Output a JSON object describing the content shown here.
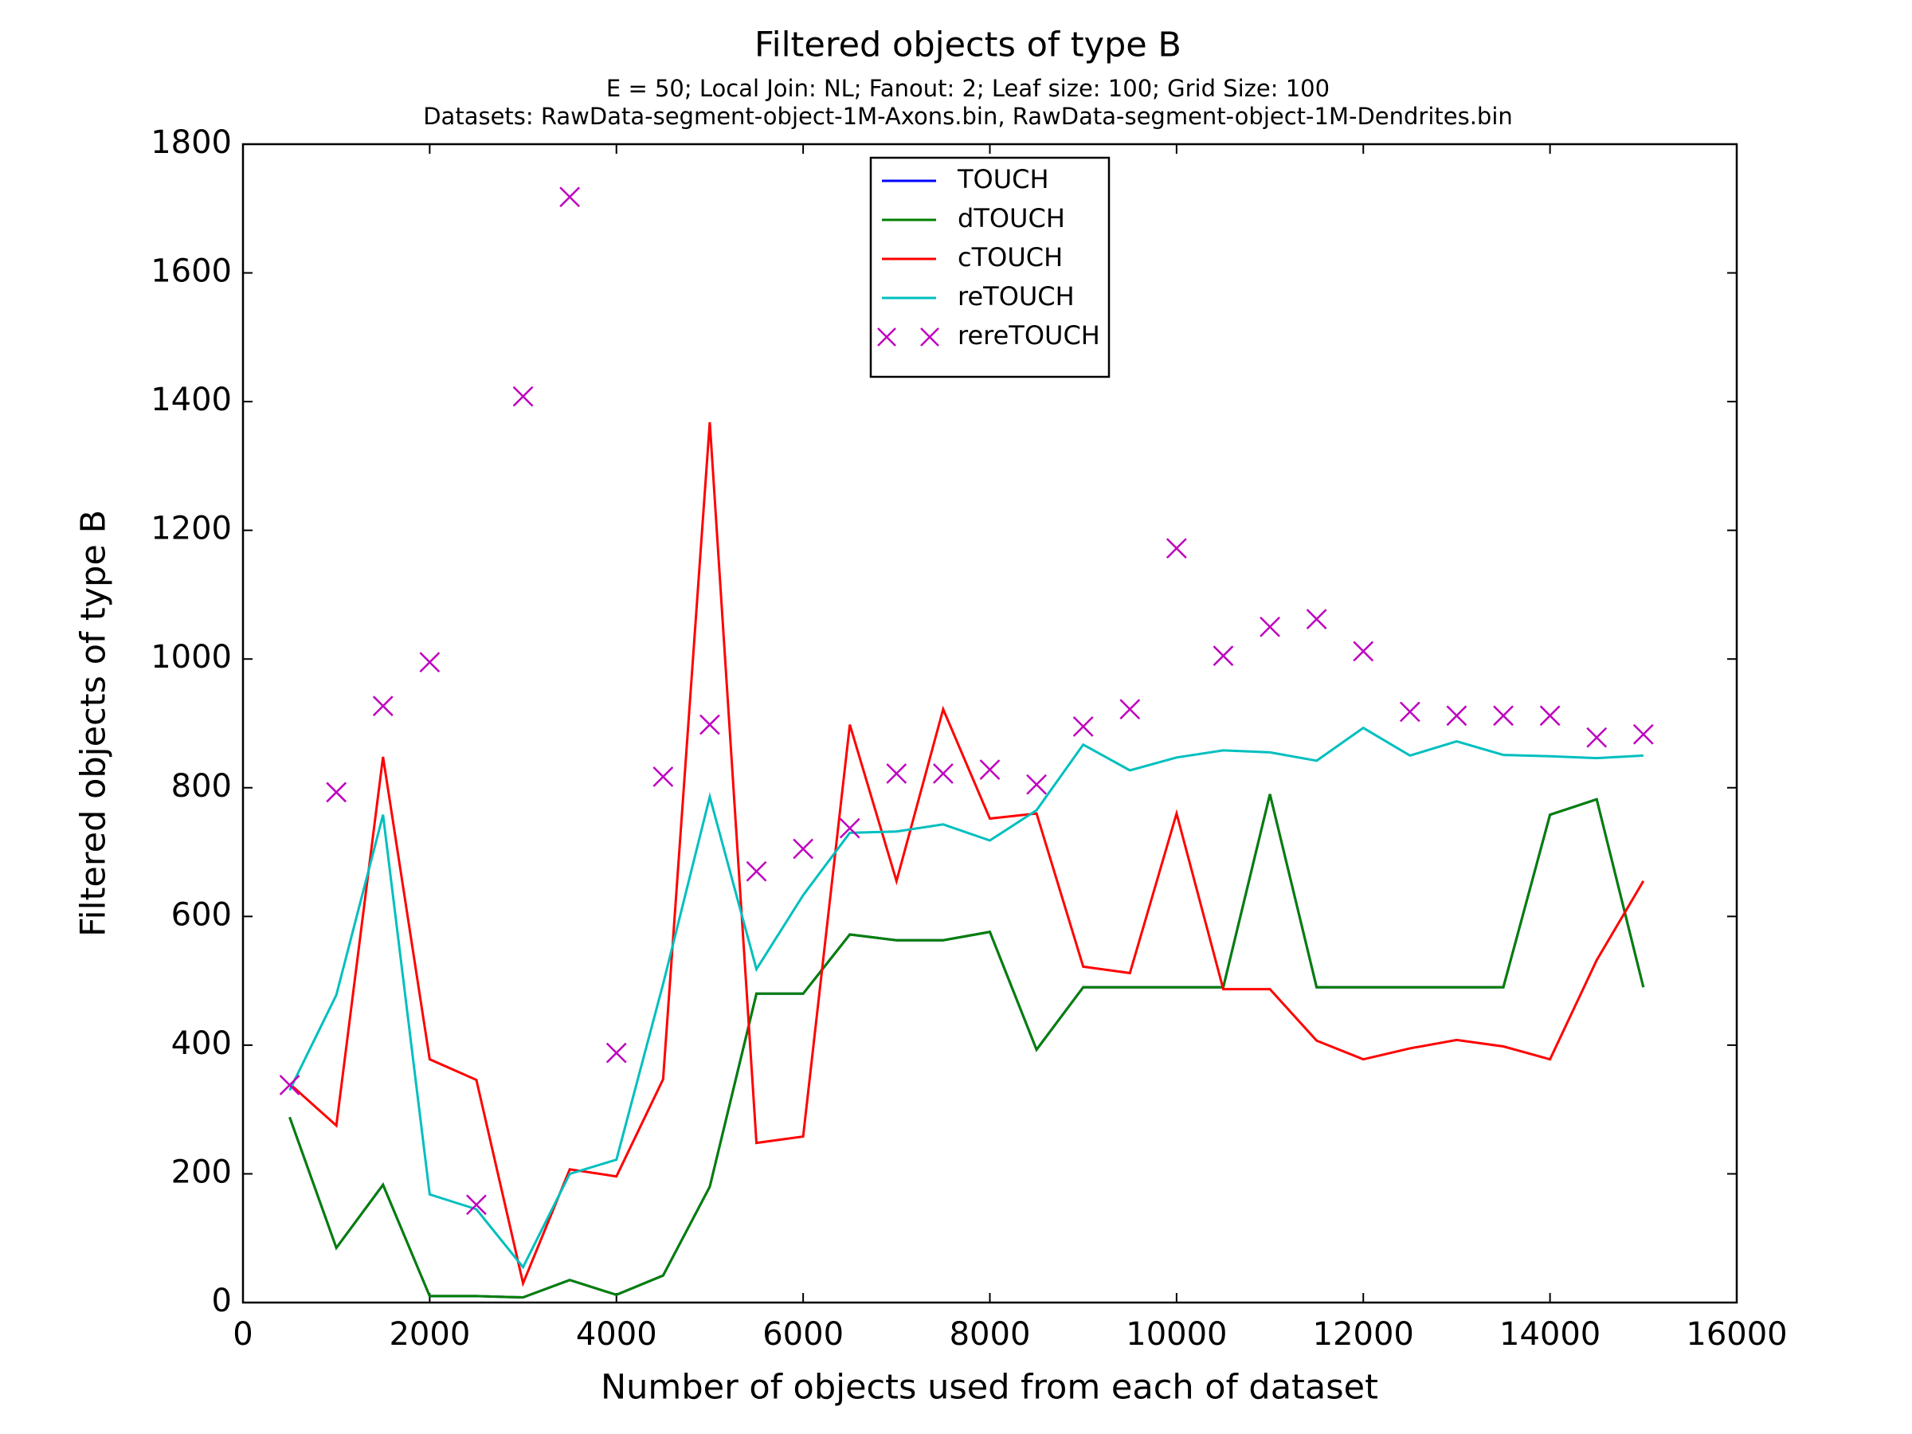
{
  "chart_data": {
    "type": "line",
    "title": "Filtered objects of type B",
    "subtitle": [
      "E = 50; Local Join: NL; Fanout: 2; Leaf size: 100; Grid Size: 100",
      "Datasets: RawData-segment-object-1M-Axons.bin, RawData-segment-object-1M-Dendrites.bin"
    ],
    "x_label": "Number of objects used from each of dataset",
    "y_label": "Filtered objects of type B",
    "x": [
      500,
      1000,
      1500,
      2000,
      2500,
      3000,
      3500,
      4000,
      4500,
      5000,
      5500,
      6000,
      6500,
      7000,
      7500,
      8000,
      8500,
      9000,
      9500,
      10000,
      10500,
      11000,
      11500,
      12000,
      12500,
      13000,
      13500,
      14000,
      14500,
      15000
    ],
    "series": [
      {
        "name": "TOUCH",
        "color": "#0000ff",
        "values": [
          288,
          85,
          183,
          10,
          10,
          8,
          35,
          12,
          42,
          180,
          480,
          480,
          572,
          563,
          563,
          576,
          393,
          490,
          490,
          490,
          490,
          790,
          490,
          490,
          490,
          490,
          490,
          758,
          782,
          490
        ]
      },
      {
        "name": "dTOUCH",
        "color": "#008000",
        "values": [
          288,
          85,
          183,
          10,
          10,
          8,
          35,
          12,
          42,
          180,
          480,
          480,
          572,
          563,
          563,
          576,
          393,
          490,
          490,
          490,
          490,
          790,
          490,
          490,
          490,
          490,
          490,
          758,
          782,
          490
        ]
      },
      {
        "name": "cTOUCH",
        "color": "#ff0000",
        "values": [
          340,
          275,
          848,
          378,
          346,
          30,
          207,
          196,
          347,
          1368,
          248,
          258,
          898,
          655,
          922,
          752,
          760,
          522,
          512,
          760,
          487,
          487,
          407,
          378,
          395,
          408,
          398,
          378,
          532,
          655
        ]
      },
      {
        "name": "reTOUCH",
        "color": "#00bfbf",
        "values": [
          330,
          478,
          758,
          168,
          145,
          55,
          200,
          222,
          495,
          786,
          518,
          633,
          730,
          732,
          743,
          718,
          765,
          867,
          827,
          847,
          858,
          855,
          842,
          893,
          850,
          872,
          851,
          849,
          846,
          850
        ]
      },
      {
        "name": "rereTOUCH",
        "color": "#bf00bf",
        "marker": "x",
        "line": false,
        "values": [
          338,
          793,
          927,
          995,
          152,
          1408,
          1718,
          388,
          817,
          898,
          670,
          705,
          737,
          822,
          822,
          828,
          805,
          895,
          922,
          1172,
          1005,
          1050,
          1062,
          1012,
          918,
          912,
          912,
          912,
          878,
          883
        ]
      }
    ],
    "xlim": [
      0,
      16000
    ],
    "xticks": [
      0,
      2000,
      4000,
      6000,
      8000,
      10000,
      12000,
      14000,
      16000
    ],
    "ylim": [
      0,
      1800
    ],
    "yticks": [
      0,
      200,
      400,
      600,
      800,
      1000,
      1200,
      1400,
      1600,
      1800
    ],
    "grid": false,
    "legend_loc": "upper center"
  }
}
